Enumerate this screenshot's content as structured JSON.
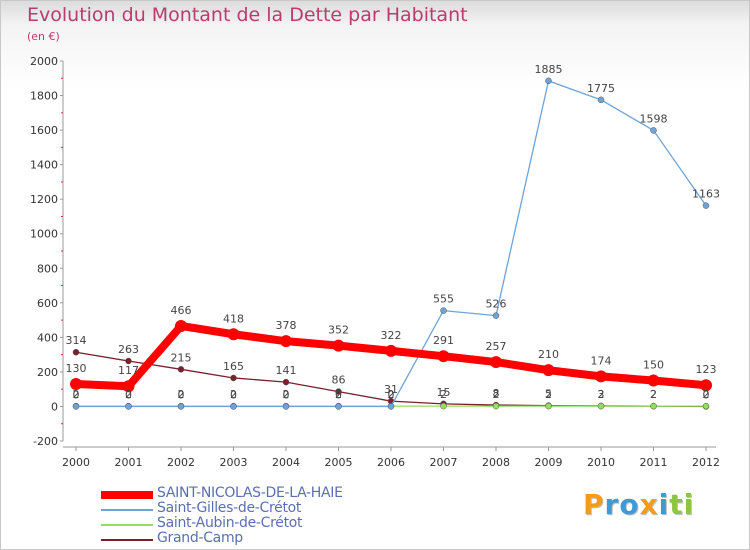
{
  "chart_data": {
    "type": "line",
    "title": "Evolution du Montant de la Dette par Habitant",
    "subtitle": "(en €)",
    "xlabel": "",
    "ylabel": "",
    "x": [
      "2000",
      "2001",
      "2002",
      "2003",
      "2004",
      "2005",
      "2006",
      "2007",
      "2008",
      "2009",
      "2010",
      "2011",
      "2012"
    ],
    "ylim": [
      -200,
      2000
    ],
    "yticks": [
      "-200",
      "0",
      "200",
      "400",
      "600",
      "800",
      "1000",
      "1200",
      "1400",
      "1600",
      "1800",
      "2000"
    ],
    "grid": false,
    "legend_position": "bottom-left",
    "series": [
      {
        "name": "SAINT-NICOLAS-DE-LA-HAIE",
        "color": "#ff0000",
        "values": [
          130,
          117,
          466,
          418,
          378,
          352,
          322,
          291,
          257,
          210,
          174,
          150,
          123
        ],
        "labels": [
          "130",
          "117",
          "466",
          "418",
          "378",
          "352",
          "322",
          "291",
          "257",
          "210",
          "174",
          "150",
          "123"
        ]
      },
      {
        "name": "Saint-Gilles-de-Crétot",
        "color": "#6fa3d6",
        "values": [
          0,
          0,
          0,
          0,
          0,
          0,
          0,
          555,
          526,
          1885,
          1775,
          1598,
          1163
        ],
        "labels": [
          "0",
          "0",
          "0",
          "0",
          "0",
          "0",
          "0",
          "555",
          "526",
          "1885",
          "1775",
          "1598",
          "1163"
        ]
      },
      {
        "name": "Saint-Aubin-de-Crétot",
        "color": "#8fe05a",
        "values": [
          2,
          2,
          2,
          2,
          2,
          2,
          2,
          2,
          2,
          2,
          2,
          2,
          2
        ],
        "labels": [
          "2",
          "2",
          "2",
          "2",
          "2",
          "2",
          "2",
          "2",
          "2",
          "2",
          "2",
          "2",
          "2"
        ]
      },
      {
        "name": "Grand-Camp",
        "color": "#7a1f2b",
        "values": [
          314,
          263,
          215,
          165,
          141,
          86,
          31,
          15,
          8,
          5,
          3,
          2,
          0
        ],
        "labels": [
          "314",
          "263",
          "215",
          "165",
          "141",
          "86",
          "31",
          "15",
          "8",
          "5",
          "3",
          "2",
          "0"
        ]
      }
    ]
  },
  "logo": {
    "text": "Proxiti",
    "letters": [
      "P",
      "r",
      "o",
      "x",
      "i",
      "t",
      "i"
    ],
    "colors": [
      "#f59b1c",
      "#3c9ad8",
      "#3c9ad8",
      "#f59b1c",
      "#3c9ad8",
      "#8cc63f",
      "#8cc63f"
    ]
  }
}
